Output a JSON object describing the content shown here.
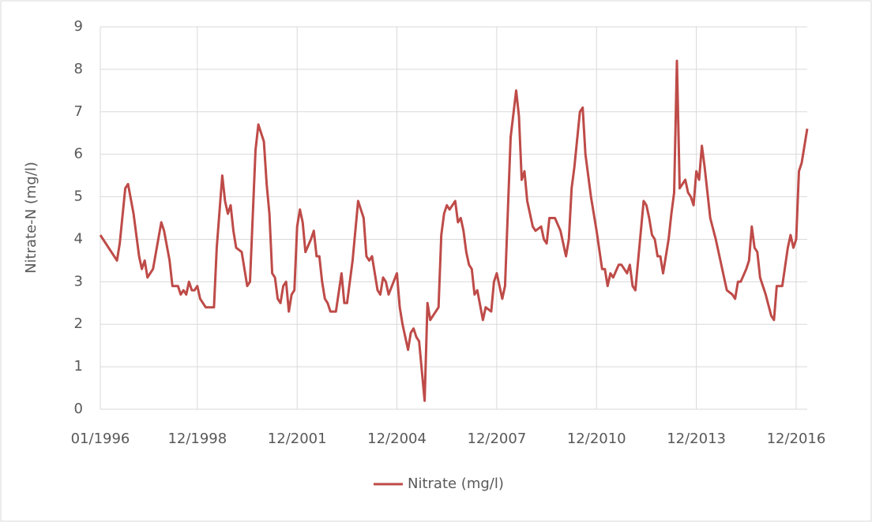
{
  "chart_data": {
    "type": "line",
    "y_label": "Nitrate-N (mg/l)",
    "x": [
      "01/1996",
      "07/1996",
      "08/1996",
      "10/1996",
      "11/1996",
      "01/1997",
      "03/1997",
      "04/1997",
      "05/1997",
      "06/1997",
      "08/1997",
      "11/1997",
      "12/1997",
      "02/1998",
      "03/1998",
      "05/1998",
      "06/1998",
      "07/1998",
      "08/1998",
      "09/1998",
      "10/1998",
      "11/1998",
      "12/1998",
      "01/1999",
      "02/1999",
      "03/1999",
      "06/1999",
      "07/1999",
      "09/1999",
      "10/1999",
      "11/1999",
      "12/1999",
      "01/2000",
      "02/2000",
      "04/2000",
      "05/2000",
      "06/2000",
      "07/2000",
      "09/2000",
      "10/2000",
      "12/2000",
      "01/2001",
      "02/2001",
      "03/2001",
      "04/2001",
      "05/2001",
      "06/2001",
      "07/2001",
      "08/2001",
      "09/2001",
      "10/2001",
      "11/2001",
      "12/2001",
      "01/2002",
      "02/2002",
      "03/2002",
      "05/2002",
      "06/2002",
      "07/2002",
      "08/2002",
      "09/2002",
      "10/2002",
      "11/2002",
      "12/2002",
      "02/2003",
      "04/2003",
      "05/2003",
      "06/2003",
      "08/2003",
      "10/2003",
      "12/2003",
      "01/2004",
      "02/2004",
      "03/2004",
      "05/2004",
      "06/2004",
      "07/2004",
      "08/2004",
      "09/2004",
      "12/2004",
      "01/2005",
      "02/2005",
      "04/2005",
      "05/2005",
      "06/2005",
      "07/2005",
      "08/2005",
      "10/2005",
      "11/2005",
      "12/2005",
      "01/2006",
      "03/2006",
      "04/2006",
      "05/2006",
      "06/2006",
      "07/2006",
      "09/2006",
      "10/2006",
      "11/2006",
      "12/2006",
      "01/2007",
      "02/2007",
      "03/2007",
      "04/2007",
      "05/2007",
      "07/2007",
      "08/2007",
      "10/2007",
      "11/2007",
      "12/2007",
      "02/2008",
      "03/2008",
      "05/2008",
      "07/2008",
      "08/2008",
      "09/2008",
      "10/2008",
      "11/2008",
      "01/2009",
      "02/2009",
      "04/2009",
      "05/2009",
      "06/2009",
      "07/2009",
      "09/2009",
      "11/2009",
      "01/2010",
      "02/2010",
      "03/2010",
      "04/2010",
      "06/2010",
      "07/2010",
      "08/2010",
      "10/2010",
      "12/2010",
      "02/2011",
      "03/2011",
      "04/2011",
      "05/2011",
      "06/2011",
      "08/2011",
      "09/2011",
      "11/2011",
      "12/2011",
      "01/2012",
      "02/2012",
      "03/2012",
      "05/2012",
      "06/2012",
      "07/2012",
      "08/2012",
      "09/2012",
      "10/2012",
      "11/2012",
      "12/2012",
      "02/2013",
      "03/2013",
      "04/2013",
      "05/2013",
      "06/2013",
      "08/2013",
      "09/2013",
      "10/2013",
      "11/2013",
      "12/2013",
      "01/2014",
      "02/2014",
      "03/2014",
      "05/2014",
      "07/2014",
      "09/2014",
      "11/2014",
      "01/2015",
      "02/2015",
      "03/2015",
      "04/2015",
      "06/2015",
      "07/2015",
      "08/2015",
      "09/2015",
      "10/2015",
      "11/2015",
      "01/2016",
      "03/2016",
      "04/2016",
      "05/2016",
      "07/2016",
      "09/2016",
      "10/2016",
      "11/2016",
      "12/2016",
      "01/2017",
      "02/2017",
      "04/2017"
    ],
    "series": [
      {
        "name": "Nitrate (mg/l)",
        "color": "#be4b48",
        "values": [
          4.1,
          3.5,
          3.9,
          5.2,
          5.3,
          4.6,
          3.6,
          3.3,
          3.5,
          3.1,
          3.3,
          4.4,
          4.2,
          3.5,
          2.9,
          2.9,
          2.7,
          2.8,
          2.7,
          3.0,
          2.8,
          2.8,
          2.9,
          2.6,
          2.5,
          2.4,
          2.4,
          3.8,
          5.5,
          4.9,
          4.6,
          4.8,
          4.2,
          3.8,
          3.7,
          3.3,
          2.9,
          3.0,
          6.1,
          6.7,
          6.3,
          5.3,
          4.6,
          3.2,
          3.1,
          2.6,
          2.5,
          2.9,
          3.0,
          2.3,
          2.7,
          2.8,
          4.3,
          4.7,
          4.4,
          3.7,
          4.0,
          4.2,
          3.6,
          3.6,
          3.0,
          2.6,
          2.5,
          2.3,
          2.3,
          3.2,
          2.5,
          2.5,
          3.5,
          4.9,
          4.5,
          3.6,
          3.5,
          3.6,
          2.8,
          2.7,
          3.1,
          3.0,
          2.7,
          3.2,
          2.4,
          2.0,
          1.4,
          1.8,
          1.9,
          1.7,
          1.6,
          0.2,
          2.5,
          2.1,
          2.2,
          2.4,
          4.1,
          4.6,
          4.8,
          4.7,
          4.9,
          4.4,
          4.5,
          4.2,
          3.7,
          3.4,
          3.3,
          2.7,
          2.8,
          2.1,
          2.4,
          2.3,
          3.0,
          3.2,
          2.6,
          2.9,
          6.4,
          7.5,
          6.9,
          5.4,
          5.6,
          4.9,
          4.3,
          4.2,
          4.3,
          4.0,
          3.9,
          4.5,
          4.5,
          4.2,
          3.6,
          4.0,
          5.2,
          5.7,
          7.0,
          7.1,
          6.0,
          5.0,
          4.2,
          3.3,
          3.3,
          2.9,
          3.2,
          3.1,
          3.4,
          3.4,
          3.2,
          3.4,
          2.9,
          2.8,
          3.5,
          4.9,
          4.8,
          4.5,
          4.1,
          4.0,
          3.6,
          3.6,
          3.2,
          4.0,
          4.6,
          5.1,
          8.2,
          5.2,
          5.4,
          5.1,
          5.0,
          4.8,
          5.6,
          5.4,
          6.2,
          5.7,
          4.5,
          4.0,
          3.4,
          2.8,
          2.7,
          2.6,
          3.0,
          3.0,
          3.3,
          3.5,
          4.3,
          3.8,
          3.7,
          3.1,
          2.7,
          2.2,
          2.1,
          2.9,
          2.9,
          3.8,
          4.1,
          3.8,
          4.0,
          5.6,
          5.8,
          6.6
        ]
      }
    ],
    "xlim": [
      "01/1996",
      "04/2017"
    ],
    "xticks": [
      "01/1996",
      "12/1998",
      "12/2001",
      "12/2004",
      "12/2007",
      "12/2010",
      "12/2013",
      "12/2016"
    ],
    "ylim": [
      0,
      9
    ],
    "yticks": [
      0,
      1,
      2,
      3,
      4,
      5,
      6,
      7,
      8,
      9
    ],
    "grid": true,
    "legend": "bottom"
  }
}
